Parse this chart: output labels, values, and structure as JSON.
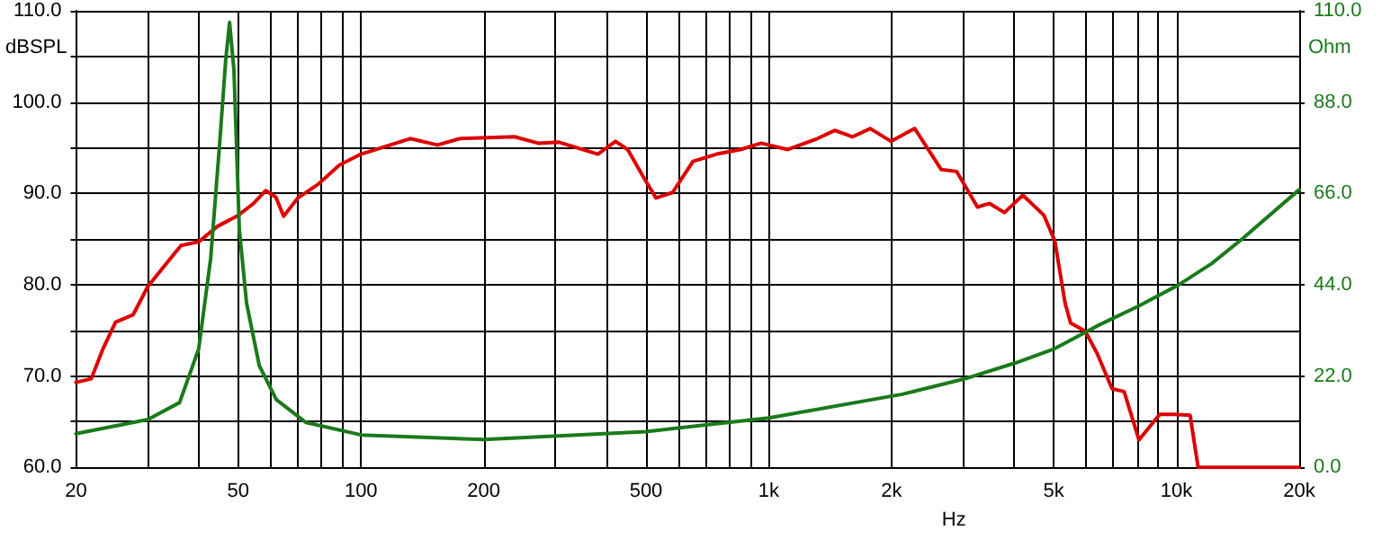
{
  "chart_data": {
    "type": "line",
    "xlabel": "Hz",
    "ylabel": "dBSPL",
    "y2label": "Ohm",
    "log": "x",
    "grid": true,
    "marker": "none",
    "line_style": "solid",
    "xlim": [
      20,
      20000
    ],
    "xticks": [
      20,
      {
        "value": 30,
        "label": null
      },
      {
        "value": 40,
        "label": null
      },
      50,
      {
        "value": 60,
        "label": null
      },
      {
        "value": 70,
        "label": null
      },
      {
        "value": 80,
        "label": null
      },
      {
        "value": 90,
        "label": null
      },
      100,
      200,
      {
        "value": 300,
        "label": null
      },
      {
        "value": 400,
        "label": null
      },
      500,
      {
        "value": 600,
        "label": null
      },
      {
        "value": 700,
        "label": null
      },
      {
        "value": 800,
        "label": null
      },
      {
        "value": 900,
        "label": null
      },
      {
        "value": 1000,
        "label": "1k"
      },
      {
        "value": 2000,
        "label": "2k"
      },
      {
        "value": 3000,
        "label": null
      },
      {
        "value": 4000,
        "label": null
      },
      {
        "value": 5000,
        "label": "5k"
      },
      {
        "value": 6000,
        "label": null
      },
      {
        "value": 7000,
        "label": null
      },
      {
        "value": 8000,
        "label": null
      },
      {
        "value": 9000,
        "label": null
      },
      {
        "value": 10000,
        "label": "10k"
      },
      {
        "value": 20000,
        "label": "20k"
      }
    ],
    "ylim": [
      60,
      110
    ],
    "yticks": [
      {
        "value": 60,
        "label": "60.0"
      },
      {
        "value": 65,
        "label": null
      },
      {
        "value": 70,
        "label": "70.0"
      },
      {
        "value": 75,
        "label": null
      },
      {
        "value": 80,
        "label": "80.0"
      },
      {
        "value": 85,
        "label": null
      },
      {
        "value": 90,
        "label": "90.0"
      },
      {
        "value": 95,
        "label": null
      },
      {
        "value": 100,
        "label": "100.0"
      },
      {
        "value": 105,
        "label": null
      },
      {
        "value": 110,
        "label": "110.0"
      }
    ],
    "y2lim": [
      0,
      110
    ],
    "y2ticks": [
      {
        "value": 0,
        "label": "0.0"
      },
      {
        "value": 22,
        "label": "22.0"
      },
      {
        "value": 44,
        "label": "44.0"
      },
      {
        "value": 66,
        "label": "66.0"
      },
      {
        "value": 88,
        "label": "88.0"
      },
      {
        "value": 110,
        "label": "110.0"
      }
    ],
    "series": [
      {
        "color": "#dd0000",
        "x": [
          20,
          21.8,
          23.3,
          25,
          27.6,
          30,
          33.7,
          36.2,
          40,
          44.5,
          50,
          54.5,
          58.4,
          61.8,
          64.6,
          70,
          78.5,
          88.5,
          100,
          132,
          154,
          175,
          238,
          272,
          306,
          381,
          421,
          451,
          494,
          529,
          581,
          652,
          745,
          852,
          958,
          1114,
          1316,
          1453,
          1606,
          1774,
          1995,
          2280,
          2650,
          2890,
          3250,
          3480,
          3785,
          4200,
          4730,
          5030,
          5330,
          5500,
          5975,
          6400,
          6950,
          7440,
          8090,
          8650,
          9100,
          9870,
          10800,
          11300,
          20000
        ],
        "values": [
          69.3,
          69.7,
          73,
          75.9,
          76.7,
          79.8,
          82.6,
          84.3,
          84.7,
          86.4,
          87.6,
          88.9,
          90.3,
          89.6,
          87.5,
          89.5,
          91,
          93.1,
          94.3,
          96,
          95.3,
          96,
          96.2,
          95.5,
          95.6,
          94.3,
          95.7,
          94.8,
          91.7,
          89.5,
          90.1,
          93.5,
          94.3,
          94.8,
          95.5,
          94.8,
          96,
          96.9,
          96.2,
          97.1,
          95.7,
          97.1,
          92.6,
          92.4,
          88.5,
          88.9,
          87.9,
          89.8,
          87.6,
          84.8,
          78,
          75.8,
          74.9,
          72.4,
          68.6,
          68.3,
          63,
          64.6,
          65.8,
          65.8,
          65.7,
          60,
          60
        ]
      },
      {
        "color": "#1a7a1a",
        "axis": "y2",
        "x": [
          20,
          30,
          35.9,
          40,
          42.8,
          45,
          46.6,
          47.6,
          48.8,
          50.3,
          52.4,
          56.3,
          62,
          73.3,
          100,
          200,
          500,
          1000,
          2124,
          3018,
          4040,
          5030,
          6400,
          8090,
          10100,
          12200,
          14600,
          20000
        ],
        "values": [
          8.1,
          11.5,
          15.6,
          28.6,
          50.5,
          77.9,
          98.4,
          107.2,
          95.6,
          57.3,
          39.5,
          24.5,
          16.3,
          10.8,
          7.8,
          6.7,
          8.6,
          11.9,
          17.6,
          21.3,
          25.2,
          28.6,
          34.1,
          38.9,
          43.9,
          49.1,
          55.3,
          66.9
        ]
      }
    ]
  }
}
